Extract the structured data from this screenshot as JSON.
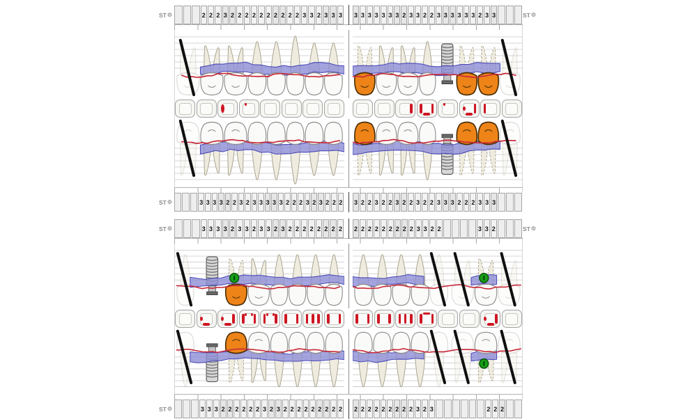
{
  "labels": {
    "st": "ST"
  },
  "colors": {
    "band_fill": "#8d8dd6",
    "band_stroke": "#4a4ab8",
    "gum_line": "#c82a3a",
    "crown_fill": "#ee8418",
    "crown_stroke": "#4a2e06",
    "tooth_fill": "#fafaf8",
    "tooth_stroke": "#8a8a8a",
    "root_fill": "#efecdf",
    "root_stroke": "#a49e8b",
    "implant_fill": "#d8d8d8",
    "implant_thread": "#7d7d7d",
    "implant_base": "#686868",
    "marker_fill": "#17a017",
    "marker_stroke": "#0a520a",
    "missing_mark": "#101010",
    "grid": "#c6c6c6",
    "occlusal_mark": "#cf1523"
  },
  "charts": [
    {
      "id": "upper-jaw",
      "strips": {
        "top": {
          "st_left": true,
          "st_right": true,
          "left": [
            "",
            "",
            "",
            "2",
            "2",
            "2",
            "3",
            "2",
            "2",
            "2",
            "2",
            "2",
            "2",
            "2",
            "2",
            "2",
            "2",
            "3",
            "3",
            "2",
            "3",
            "3",
            "3"
          ],
          "right": [
            "3",
            "3",
            "3",
            "3",
            "3",
            "3",
            "3",
            "2",
            "3",
            "3",
            "2",
            "2",
            "3",
            "3",
            "3",
            "3",
            "3",
            "3",
            "2",
            "3",
            "3",
            "",
            "",
            ""
          ]
        },
        "bottom": {
          "st_left": true,
          "st_right": false,
          "left": [
            "",
            "",
            "",
            "3",
            "3",
            "3",
            "3",
            "2",
            "2",
            "3",
            "2",
            "3",
            "3",
            "3",
            "3",
            "3",
            "2",
            "2",
            "2",
            "3",
            "2",
            "3",
            "2",
            "2",
            "2"
          ],
          "right": [
            "3",
            "2",
            "2",
            "3",
            "2",
            "2",
            "3",
            "2",
            "2",
            "3",
            "2",
            "2",
            "3",
            "3",
            "3",
            "2",
            "2",
            "2",
            "3",
            "3",
            "3",
            "",
            "",
            ""
          ]
        }
      },
      "bands": {
        "outer": {
          "left": {
            "teeth": [
              {
                "t": "m",
                "s": "mi"
              },
              {
                "t": "m",
                "s": "n"
              },
              {
                "t": "m",
                "s": "n"
              },
              {
                "t": "p",
                "s": "n"
              },
              {
                "t": "p",
                "s": "n"
              },
              {
                "t": "c",
                "s": "n"
              },
              {
                "t": "i",
                "s": "n"
              },
              {
                "t": "i",
                "s": "n"
              }
            ],
            "band": [
              [
                0.15,
                1
              ]
            ],
            "red": [
              [
                0.04,
                1
              ]
            ]
          },
          "right": {
            "teeth": [
              {
                "t": "m",
                "s": "cr"
              },
              {
                "t": "m",
                "s": "n"
              },
              {
                "t": "m",
                "s": "n"
              },
              {
                "t": "p",
                "s": "n"
              },
              {
                "t": "p",
                "s": "im",
                "pad": 4
              },
              {
                "t": "m",
                "s": "cr"
              },
              {
                "t": "m",
                "s": "cr"
              },
              {
                "t": "m",
                "s": "mi"
              }
            ],
            "band": [
              [
                0,
                0.87
              ]
            ],
            "red": [
              [
                0,
                0.99
              ]
            ]
          }
        },
        "inner": {
          "left": {
            "teeth": [
              {
                "t": "m",
                "s": "mi"
              },
              {
                "t": "m",
                "s": "n"
              },
              {
                "t": "m",
                "s": "n"
              },
              {
                "t": "p",
                "s": "n"
              },
              {
                "t": "p",
                "s": "n"
              },
              {
                "t": "c",
                "s": "n"
              },
              {
                "t": "i",
                "s": "n"
              },
              {
                "t": "i",
                "s": "n"
              }
            ],
            "band": [
              [
                0.15,
                1
              ]
            ],
            "red": [
              [
                0.04,
                1
              ]
            ]
          },
          "right": {
            "teeth": [
              {
                "t": "m",
                "s": "cr"
              },
              {
                "t": "m",
                "s": "n"
              },
              {
                "t": "m",
                "s": "n"
              },
              {
                "t": "p",
                "s": "n"
              },
              {
                "t": "p",
                "s": "im",
                "pad": 4
              },
              {
                "t": "m",
                "s": "cr"
              },
              {
                "t": "m",
                "s": "cr"
              },
              {
                "t": "m",
                "s": "mi"
              }
            ],
            "band": [
              [
                0,
                0.87
              ]
            ],
            "red": [
              [
                0,
                0.99
              ]
            ]
          }
        }
      },
      "occlusal": {
        "left": [
          [],
          [],
          [
            "lo"
          ],
          [
            "tld"
          ],
          [],
          [],
          [],
          []
        ],
        "right": [
          [],
          [],
          [
            "rb"
          ],
          [
            "lb",
            "bd",
            "rb"
          ],
          [
            "tld"
          ],
          [
            "ld",
            "bd",
            "rb"
          ],
          [
            "lb"
          ],
          []
        ]
      }
    },
    {
      "id": "lower-jaw",
      "strips": {
        "top": {
          "st_left": true,
          "st_right": true,
          "left": [
            "",
            "",
            "",
            "3",
            "3",
            "3",
            "3",
            "2",
            "3",
            "3",
            "2",
            "3",
            "3",
            "2",
            "3",
            "2",
            "2",
            "2",
            "2",
            "2",
            "2",
            "2",
            "2"
          ],
          "right": [
            "2",
            "2",
            "2",
            "2",
            "2",
            "2",
            "2",
            "2",
            "2",
            "3",
            "3",
            "2",
            "2",
            "",
            "",
            "",
            "",
            "3",
            "3",
            "2",
            "",
            "",
            ""
          ]
        },
        "bottom": {
          "st_left": true,
          "st_right": false,
          "left": [
            "",
            "",
            "",
            "3",
            "3",
            "3",
            "2",
            "2",
            "2",
            "2",
            "2",
            "2",
            "3",
            "2",
            "3",
            "2",
            "2",
            "2",
            "2",
            "2",
            "2",
            "2",
            "2",
            "2"
          ],
          "right": [
            "2",
            "2",
            "2",
            "2",
            "2",
            "2",
            "2",
            "2",
            "2",
            "3",
            "2",
            "3",
            "",
            "",
            "",
            "",
            "",
            "",
            "2",
            "2",
            "2",
            "",
            ""
          ]
        }
      },
      "bands": {
        "outer": {
          "left": {
            "teeth": [
              {
                "t": "p",
                "s": "mi"
              },
              {
                "t": "p",
                "s": "im",
                "pad": 14
              },
              {
                "t": "m",
                "s": "cr",
                "mk": 1,
                "pad": 6
              },
              {
                "t": "m",
                "s": "n"
              },
              {
                "t": "p",
                "s": "n"
              },
              {
                "t": "p",
                "s": "n"
              },
              {
                "t": "p",
                "s": "n"
              },
              {
                "t": "p",
                "s": "n"
              }
            ],
            "band": [
              [
                0.09,
                1
              ]
            ],
            "red": [
              [
                0.01,
                1
              ]
            ]
          },
          "right": {
            "teeth": [
              {
                "t": "p",
                "s": "n"
              },
              {
                "t": "p",
                "s": "n"
              },
              {
                "t": "p",
                "s": "n"
              },
              {
                "t": "p",
                "s": "n"
              },
              {
                "t": "p",
                "s": "mi"
              },
              {
                "t": "m",
                "s": "mi",
                "pad": 4
              },
              {
                "t": "m",
                "s": "n",
                "mk": 1
              },
              {
                "t": "m",
                "s": "mi"
              }
            ],
            "band": [
              [
                0,
                0.42
              ],
              [
                0.7,
                0.85
              ]
            ],
            "red": [
              [
                0,
                1
              ]
            ]
          }
        },
        "inner": {
          "left": {
            "teeth": [
              {
                "t": "p",
                "s": "mi"
              },
              {
                "t": "p",
                "s": "im",
                "pad": 14
              },
              {
                "t": "m",
                "s": "cr",
                "pad": 6
              },
              {
                "t": "m",
                "s": "n"
              },
              {
                "t": "p",
                "s": "n"
              },
              {
                "t": "p",
                "s": "n"
              },
              {
                "t": "p",
                "s": "n"
              },
              {
                "t": "p",
                "s": "n"
              }
            ],
            "band": [
              [
                0.09,
                1
              ]
            ],
            "red": [
              [
                0.01,
                1
              ]
            ]
          },
          "right": {
            "teeth": [
              {
                "t": "p",
                "s": "n"
              },
              {
                "t": "p",
                "s": "n"
              },
              {
                "t": "p",
                "s": "n"
              },
              {
                "t": "p",
                "s": "n"
              },
              {
                "t": "p",
                "s": "mi"
              },
              {
                "t": "m",
                "s": "mi",
                "pad": 4
              },
              {
                "t": "m",
                "s": "n",
                "mk": 2
              },
              {
                "t": "m",
                "s": "mi"
              }
            ],
            "band": [
              [
                0,
                0.42
              ],
              [
                0.7,
                0.85
              ]
            ],
            "red": [
              [
                0,
                1
              ]
            ]
          }
        }
      },
      "occlusal": {
        "left": [
          [],
          [
            "ld",
            "bd"
          ],
          [
            "ld",
            "bd",
            "rb"
          ],
          [
            "lb",
            "tt",
            "rb"
          ],
          [
            "lb",
            "tt",
            "rb"
          ],
          [
            "lb",
            "rb"
          ],
          [
            "lb",
            "cb",
            "rb"
          ],
          [
            "lb",
            "rb"
          ]
        ],
        "right": [
          [
            "lb",
            "rb"
          ],
          [
            "lb",
            "rb"
          ],
          [
            "lb",
            "cb",
            "rb"
          ],
          [
            "lb",
            "td",
            "rb"
          ],
          [],
          [],
          [
            "ld",
            "bd",
            "rb"
          ],
          []
        ]
      }
    }
  ]
}
